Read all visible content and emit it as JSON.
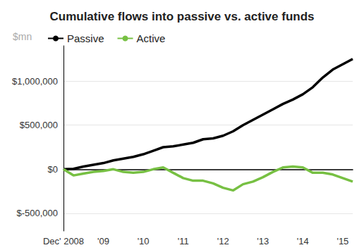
{
  "chart_data": {
    "type": "line",
    "title": "Cumulative flows into passive vs. active funds",
    "ylabel": "$mn",
    "categories": [
      "Dec' 2008",
      null,
      null,
      null,
      "'09",
      null,
      null,
      null,
      "'10",
      null,
      null,
      null,
      "'11",
      null,
      null,
      null,
      "'12",
      null,
      null,
      null,
      "'13",
      null,
      null,
      null,
      "'14",
      null,
      null,
      null,
      "'15",
      null
    ],
    "series": [
      {
        "name": "Passive",
        "color": "#000000",
        "values": [
          0,
          5000,
          30000,
          50000,
          70000,
          100000,
          120000,
          140000,
          170000,
          210000,
          250000,
          260000,
          280000,
          300000,
          340000,
          350000,
          380000,
          430000,
          500000,
          560000,
          620000,
          680000,
          740000,
          790000,
          850000,
          930000,
          1040000,
          1130000,
          1190000,
          1250000
        ]
      },
      {
        "name": "Active",
        "color": "#77c043",
        "values": [
          0,
          -70000,
          -50000,
          -30000,
          -20000,
          0,
          -30000,
          -40000,
          -30000,
          0,
          20000,
          -40000,
          -100000,
          -130000,
          -130000,
          -160000,
          -210000,
          -240000,
          -170000,
          -140000,
          -90000,
          -30000,
          20000,
          30000,
          20000,
          -40000,
          -40000,
          -60000,
          -100000,
          -140000
        ]
      }
    ],
    "ylim": [
      -700000,
      1400000
    ],
    "yticks": [
      {
        "value": -500000,
        "label": "$-500,000"
      },
      {
        "value": 0,
        "label": "$0"
      },
      {
        "value": 500000,
        "label": "$500,000"
      },
      {
        "value": 1000000,
        "label": "$1,000,000"
      }
    ],
    "grid": true,
    "legend": "top-left"
  }
}
